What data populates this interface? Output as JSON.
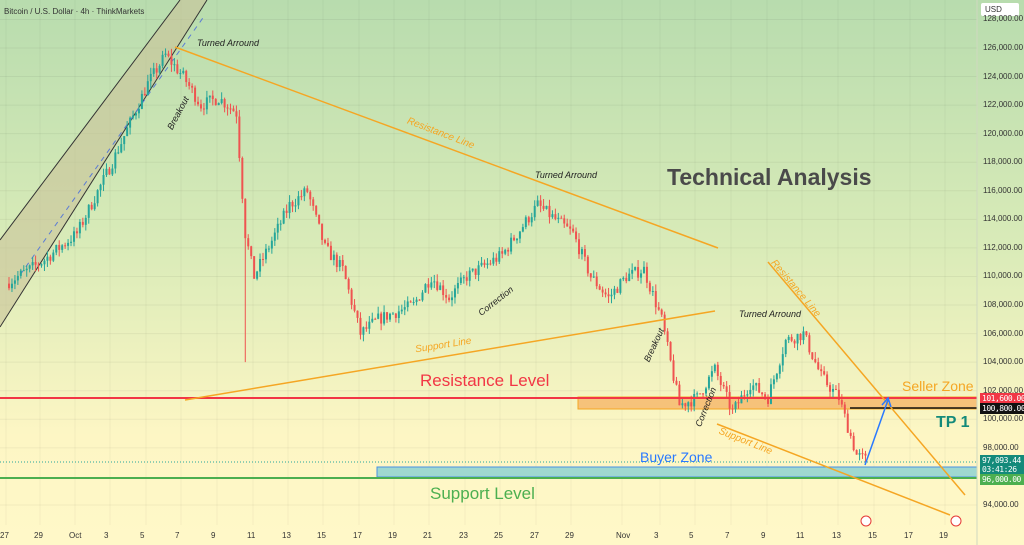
{
  "header": {
    "title": "Bitcoin / U.S. Dollar · 4h · ThinkMarkets",
    "currency": "USD"
  },
  "annotations": {
    "turned1": "Turned Arround",
    "breakout1": "Breakout",
    "resistance_line1": "Resistance Line",
    "turned2": "Turned Arround",
    "title": "Technical Analysis",
    "correction1": "Correction",
    "support_line1": "Support Line",
    "resistance_level": "Resistance Level",
    "breakout2": "Breakout",
    "turned3": "Turned Arround",
    "resistance_line2": "Resistance Line",
    "seller_zone": "Seller Zone",
    "tp1": "TP 1",
    "correction2": "Correction",
    "support_line2": "Support Line",
    "buyer_zone": "Buyer Zone",
    "support_level": "Support Level"
  },
  "badges": {
    "resistance": "101,600.00",
    "black": "100,800.00",
    "last_price": "97,093.44",
    "countdown": "03:41:26",
    "support": "96,000.00"
  },
  "colors": {
    "up": "#26a69a",
    "down": "#ef5350",
    "orange": "#f5a623",
    "red": "#f23645",
    "green": "#4caf50",
    "blue": "#2962ff"
  },
  "chart_data": {
    "type": "candlestick",
    "title": "Bitcoin / U.S. Dollar · 4h · ThinkMarkets",
    "ylim": [
      93000,
      128500
    ],
    "y_ticks": [
      "128,000.00",
      "126,000.00",
      "124,000.00",
      "122,000.00",
      "120,000.00",
      "118,000.00",
      "116,000.00",
      "114,000.00",
      "112,000.00",
      "110,000.00",
      "108,000.00",
      "106,000.00",
      "104,000.00",
      "102,000.00",
      "100,000.00",
      "98,000.00",
      "94,000.00"
    ],
    "x_ticks": [
      "27",
      "29",
      "Oct",
      "3",
      "5",
      "7",
      "9",
      "11",
      "13",
      "15",
      "17",
      "19",
      "21",
      "23",
      "25",
      "27",
      "29",
      "Nov",
      "3",
      "5",
      "7",
      "9",
      "11",
      "13",
      "15",
      "17",
      "19"
    ],
    "price_path_days_from_sep27": [
      [
        0,
        109500
      ],
      [
        2,
        111000
      ],
      [
        4,
        113000
      ],
      [
        6,
        118000
      ],
      [
        8,
        123500
      ],
      [
        9,
        125500
      ],
      [
        10,
        124000
      ],
      [
        11,
        122000
      ],
      [
        12,
        122500
      ],
      [
        13,
        121500
      ],
      [
        13.5,
        113000
      ],
      [
        14,
        110000
      ],
      [
        16,
        115000
      ],
      [
        17,
        116000
      ],
      [
        18,
        112000
      ],
      [
        19,
        110500
      ],
      [
        20,
        106000
      ],
      [
        21,
        107000
      ],
      [
        23,
        108000
      ],
      [
        24,
        110000
      ],
      [
        25,
        108500
      ],
      [
        26,
        110000
      ],
      [
        28,
        111500
      ],
      [
        30,
        115000
      ],
      [
        31,
        114000
      ],
      [
        32,
        113000
      ],
      [
        33,
        110000
      ],
      [
        34,
        108500
      ],
      [
        35,
        110000
      ],
      [
        36,
        110500
      ],
      [
        37,
        107000
      ],
      [
        38,
        101000
      ],
      [
        39,
        101500
      ],
      [
        40,
        103500
      ],
      [
        41,
        100500
      ],
      [
        42,
        102500
      ],
      [
        43,
        101500
      ],
      [
        44,
        105500
      ],
      [
        45,
        106000
      ],
      [
        46,
        103000
      ],
      [
        47,
        101500
      ],
      [
        48,
        97500
      ],
      [
        48.6,
        97093
      ]
    ],
    "levels": {
      "resistance": 101600,
      "support": 96000,
      "current": 97093.44
    }
  }
}
